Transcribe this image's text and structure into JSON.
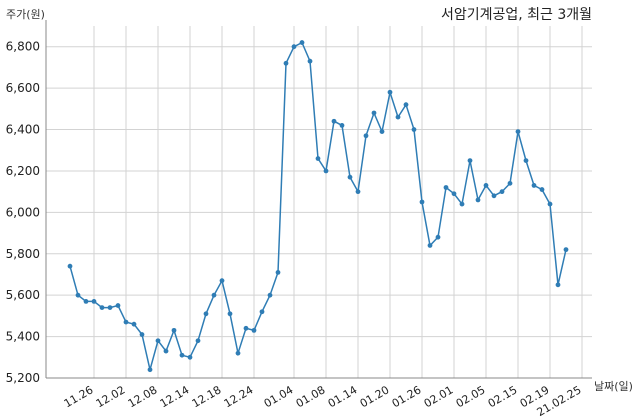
{
  "chart_data": {
    "type": "line",
    "title": "서암기계공업, 최근 3개월",
    "ylabel": "주가(원)",
    "xlabel": "날짜(일)",
    "ylim": [
      5200,
      6900
    ],
    "yticks": [
      5200,
      5400,
      5600,
      5800,
      6000,
      6200,
      6400,
      6600,
      6800
    ],
    "ytick_labels": [
      "5,200",
      "5,400",
      "5,600",
      "5,800",
      "6,000",
      "6,200",
      "6,400",
      "6,600",
      "6,800"
    ],
    "xtick_labels": [
      "11.26",
      "12.02",
      "12.08",
      "12.14",
      "12.18",
      "12.24",
      "01.04",
      "01.08",
      "01.14",
      "01.20",
      "01.26",
      "02.01",
      "02.05",
      "02.15",
      "02.19",
      "21.02.25"
    ],
    "xtick_indices": [
      3,
      7,
      11,
      15,
      19,
      23,
      28,
      32,
      36,
      40,
      44,
      48,
      52,
      56,
      60,
      64
    ],
    "grid": true,
    "color": "#2f7db5",
    "series": [
      {
        "values": [
          5740,
          5600,
          5570,
          5570,
          5540,
          5540,
          5550,
          5470,
          5460,
          5410,
          5240,
          5380,
          5330,
          5430,
          5310,
          5300,
          5380,
          5510,
          5600,
          5670,
          5510,
          5320,
          5440,
          5430,
          5520,
          5600,
          5710,
          6720,
          6800,
          6820,
          6730,
          6260,
          6200,
          6440,
          6420,
          6170,
          6100,
          6370,
          6480,
          6390,
          6580,
          6460,
          6520,
          6400,
          6050,
          5840,
          5880,
          6120,
          6090,
          6040,
          6250,
          6060,
          6130,
          6080,
          6100,
          6140,
          6390,
          6250,
          6130,
          6110,
          6040,
          5650,
          5820
        ]
      }
    ]
  }
}
